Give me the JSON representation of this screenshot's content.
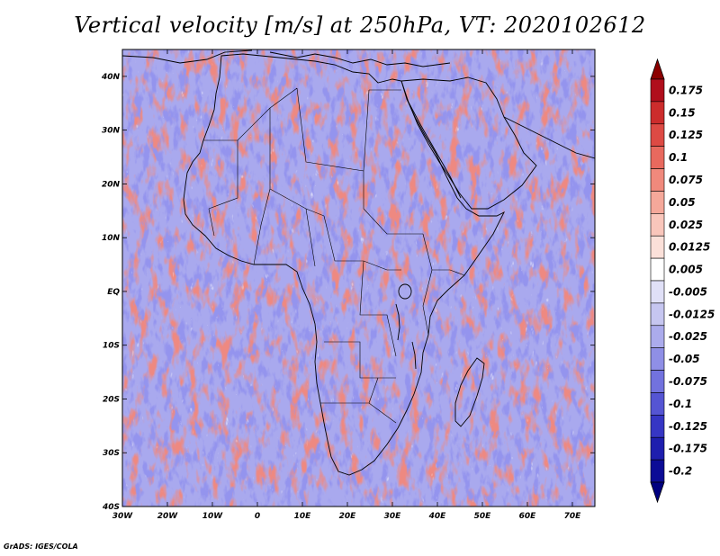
{
  "title": "Vertical velocity [m/s] at 250hPa, VT: 2020102612",
  "credit": "GrADS: IGES/COLA",
  "map": {
    "projection": "latlon",
    "lon_range": [
      -30,
      75
    ],
    "lat_range": [
      -40,
      45
    ],
    "variable": "vertical velocity",
    "units": "m/s",
    "level": "250hPa",
    "valid_time": "2020102612"
  },
  "axes": {
    "lat_labels": [
      {
        "lat": 40,
        "label": "40N"
      },
      {
        "lat": 30,
        "label": "30N"
      },
      {
        "lat": 20,
        "label": "20N"
      },
      {
        "lat": 10,
        "label": "10N"
      },
      {
        "lat": 0,
        "label": "EQ"
      },
      {
        "lat": -10,
        "label": "10S"
      },
      {
        "lat": -20,
        "label": "20S"
      },
      {
        "lat": -30,
        "label": "30S"
      },
      {
        "lat": -40,
        "label": "40S"
      }
    ],
    "lon_labels": [
      {
        "lon": -30,
        "label": "30W"
      },
      {
        "lon": -20,
        "label": "20W"
      },
      {
        "lon": -10,
        "label": "10W"
      },
      {
        "lon": 0,
        "label": "0"
      },
      {
        "lon": 10,
        "label": "10E"
      },
      {
        "lon": 20,
        "label": "20E"
      },
      {
        "lon": 30,
        "label": "30E"
      },
      {
        "lon": 40,
        "label": "40E"
      },
      {
        "lon": 50,
        "label": "50E"
      },
      {
        "lon": 60,
        "label": "60E"
      },
      {
        "lon": 70,
        "label": "70E"
      }
    ]
  },
  "colorbar": {
    "segments": [
      {
        "color": "#b00e1c"
      },
      {
        "color": "#cc2c2c"
      },
      {
        "color": "#dd4a44"
      },
      {
        "color": "#e8695e"
      },
      {
        "color": "#f0897c"
      },
      {
        "color": "#f5a89a"
      },
      {
        "color": "#f9c6bb"
      },
      {
        "color": "#fbe0d9"
      },
      {
        "color": "#ffffff"
      },
      {
        "color": "#e0e0f7"
      },
      {
        "color": "#c6c6f0"
      },
      {
        "color": "#ababec"
      },
      {
        "color": "#8f8fe6"
      },
      {
        "color": "#7272de"
      },
      {
        "color": "#5555d3"
      },
      {
        "color": "#3636c4"
      },
      {
        "color": "#1e1eae"
      },
      {
        "color": "#0c0c96"
      }
    ],
    "labels": [
      "0.175",
      "0.15",
      "0.125",
      "0.1",
      "0.075",
      "0.05",
      "0.025",
      "0.0125",
      "0.005",
      "-0.005",
      "-0.0125",
      "-0.025",
      "-0.05",
      "-0.075",
      "-0.1",
      "-0.125",
      "-0.175",
      "-0.2"
    ],
    "top_color": "#8c0000",
    "bottom_color": "#000080"
  },
  "colors": {
    "positive": "#e0766c",
    "negative": "#7f7fe3",
    "outline": "#000000"
  }
}
